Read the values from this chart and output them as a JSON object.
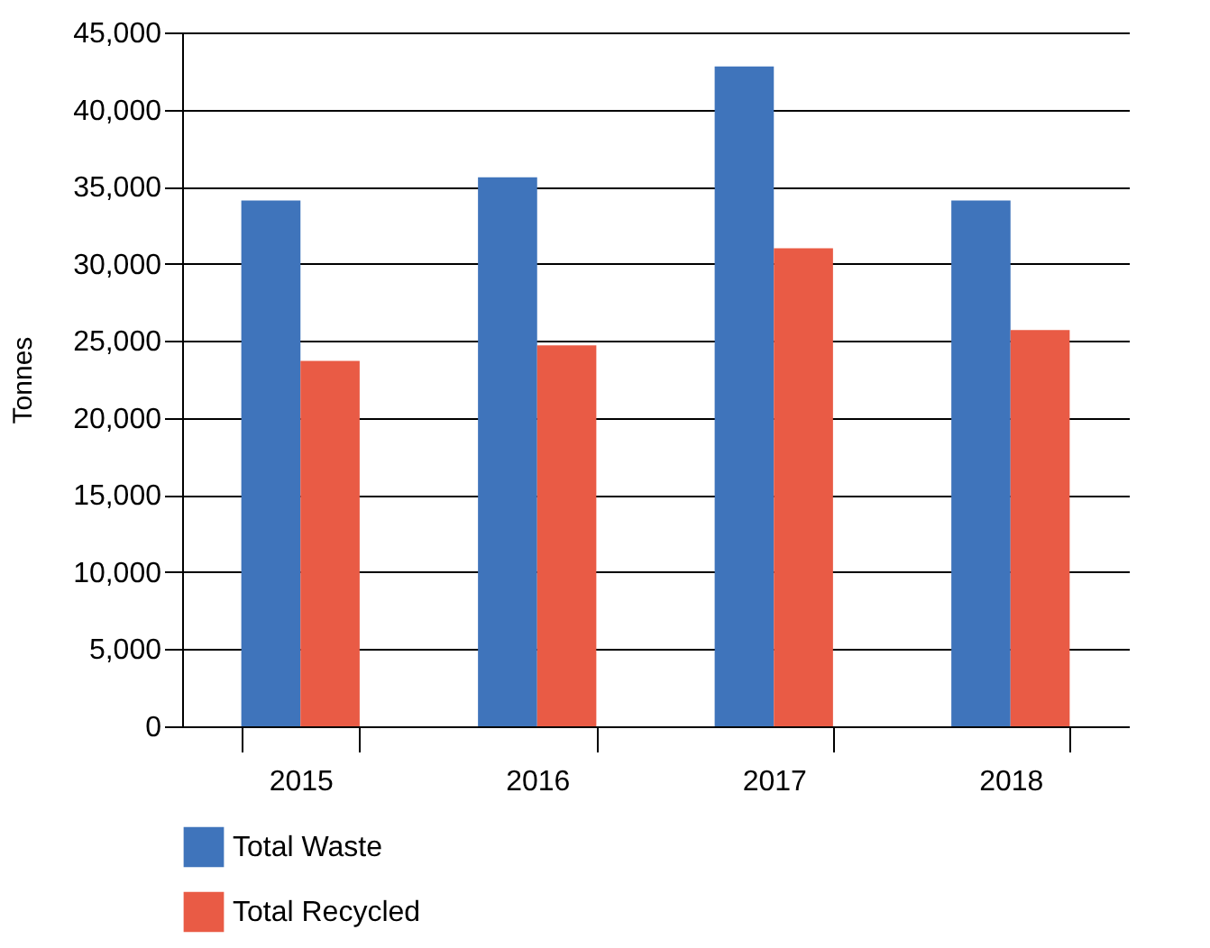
{
  "chart_data": {
    "type": "bar",
    "ylabel": "Tonnes",
    "categories": [
      "2015",
      "2016",
      "2017",
      "2018"
    ],
    "series": [
      {
        "name": "Total Waste",
        "color": "#3f74bb",
        "values": [
          34100,
          35600,
          42800,
          34100
        ]
      },
      {
        "name": "Total Recycled",
        "color": "#e95b45",
        "values": [
          23700,
          24700,
          31000,
          25700
        ]
      }
    ],
    "ylim": [
      0,
      45000
    ],
    "yticks": [
      0,
      {
        "value": 5000,
        "label": "5,000"
      },
      {
        "value": 10000,
        "label": "10,000"
      },
      {
        "value": 15000,
        "label": "15,000"
      },
      {
        "value": 20000,
        "label": "20,000"
      },
      {
        "value": 25000,
        "label": "25,000"
      },
      {
        "value": 30000,
        "label": "30,000"
      },
      {
        "value": 35000,
        "label": "35,000"
      },
      {
        "value": 40000,
        "label": "40,000"
      },
      {
        "value": 45000,
        "label": "45,000"
      }
    ],
    "grid": "y",
    "legend": "bottom left"
  }
}
